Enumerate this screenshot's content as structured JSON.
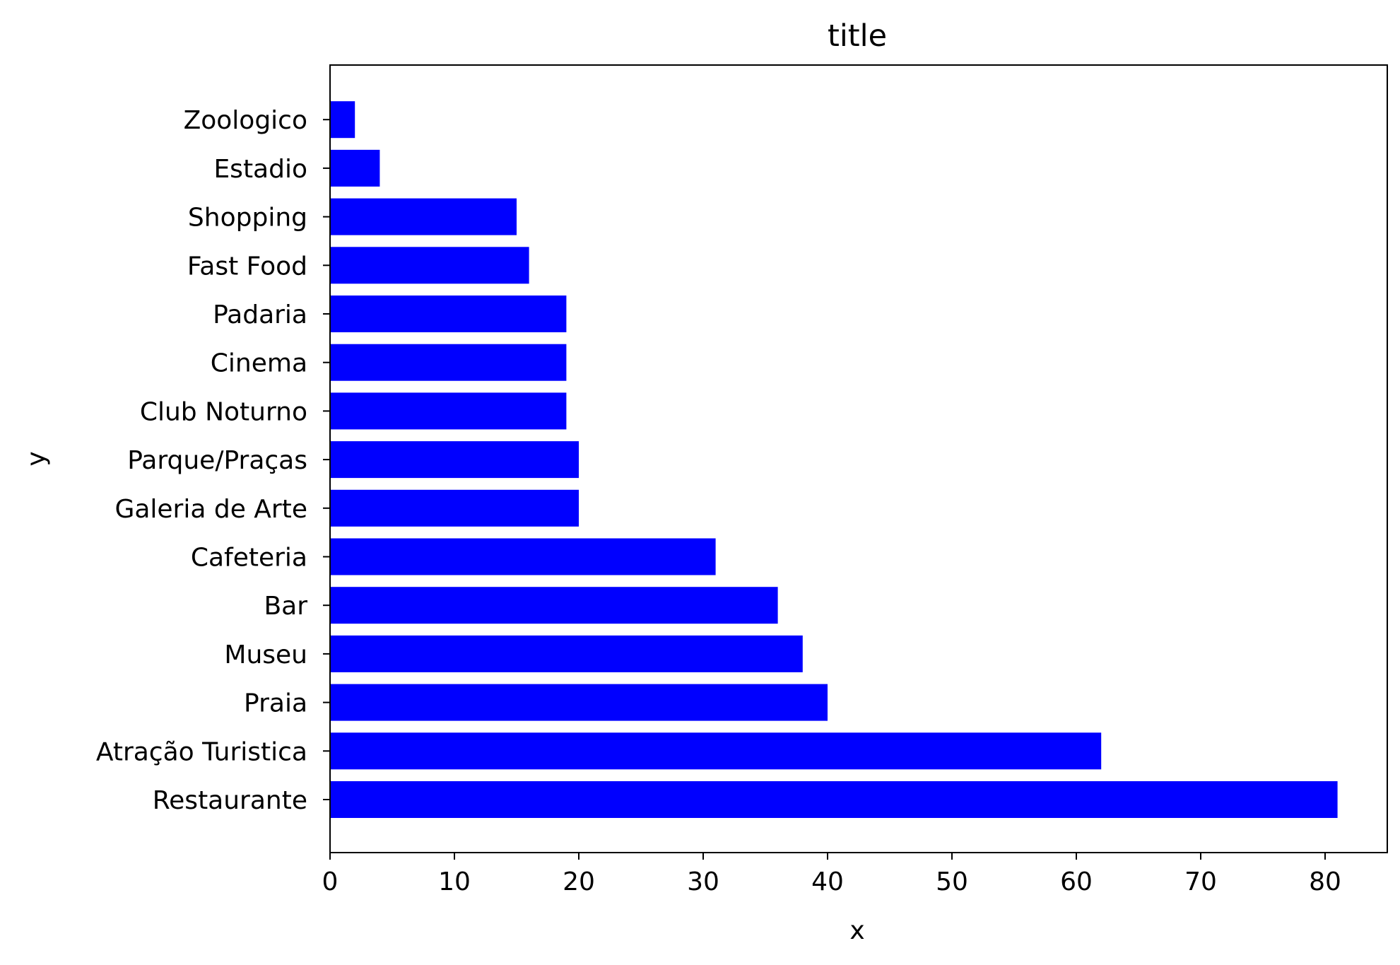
{
  "chart_data": {
    "type": "bar",
    "orientation": "horizontal",
    "title": "title",
    "xlabel": "x",
    "ylabel": "y",
    "categories": [
      "Restaurante",
      "Atração Turistica",
      "Praia",
      "Museu",
      "Bar",
      "Cafeteria",
      "Galeria de Arte",
      "Parque/Praças",
      "Club Noturno",
      "Cinema",
      "Padaria",
      "Fast Food",
      "Shopping",
      "Estadio",
      "Zoologico"
    ],
    "values": [
      81,
      62,
      40,
      38,
      36,
      31,
      20,
      20,
      19,
      19,
      19,
      16,
      15,
      4,
      2
    ],
    "xlim": [
      0,
      85
    ],
    "xticks": [
      0,
      10,
      20,
      30,
      40,
      50,
      60,
      70,
      80
    ],
    "grid": false,
    "legend": "none",
    "bar_color": "#0000ff",
    "axis_color": "#000000",
    "background": "#ffffff"
  }
}
